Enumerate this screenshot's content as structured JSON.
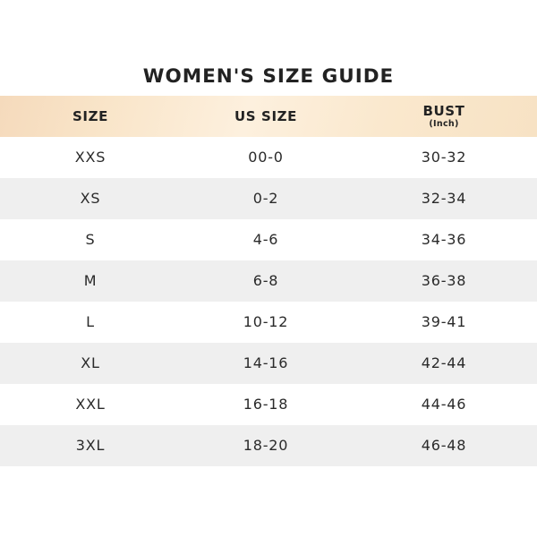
{
  "title": "WOMEN'S SIZE GUIDE",
  "colors": {
    "header_band_peach": "#f9e5c9",
    "header_band_light": "#fdf0de",
    "header_band_dark": "#f5dabc",
    "alt_row_gray": "#efefef",
    "row_white": "#ffffff",
    "text_dark": "#222222",
    "text_row": "#2a2a2a"
  },
  "table": {
    "columns": [
      {
        "label": "SIZE",
        "sublabel": ""
      },
      {
        "label": "US SIZE",
        "sublabel": ""
      },
      {
        "label": "BUST",
        "sublabel": "(Inch)"
      }
    ],
    "rows": [
      {
        "size": "XXS",
        "us_size": "00-0",
        "bust": "30-32"
      },
      {
        "size": "XS",
        "us_size": "0-2",
        "bust": "32-34"
      },
      {
        "size": "S",
        "us_size": "4-6",
        "bust": "34-36"
      },
      {
        "size": "M",
        "us_size": "6-8",
        "bust": "36-38"
      },
      {
        "size": "L",
        "us_size": "10-12",
        "bust": "39-41"
      },
      {
        "size": "XL",
        "us_size": "14-16",
        "bust": "42-44"
      },
      {
        "size": "XXL",
        "us_size": "16-18",
        "bust": "44-46"
      },
      {
        "size": "3XL",
        "us_size": "18-20",
        "bust": "46-48"
      }
    ]
  },
  "chart_data": {
    "type": "table",
    "title": "WOMEN'S SIZE GUIDE",
    "columns": [
      "SIZE",
      "US SIZE",
      "BUST (Inch)"
    ],
    "rows": [
      [
        "XXS",
        "00-0",
        "30-32"
      ],
      [
        "XS",
        "0-2",
        "32-34"
      ],
      [
        "S",
        "4-6",
        "34-36"
      ],
      [
        "M",
        "6-8",
        "36-38"
      ],
      [
        "L",
        "10-12",
        "39-41"
      ],
      [
        "XL",
        "14-16",
        "42-44"
      ],
      [
        "XXL",
        "16-18",
        "44-46"
      ],
      [
        "3XL",
        "18-20",
        "46-48"
      ]
    ],
    "layout_hints": {
      "alternating_row_shading": true,
      "header_background": "peach gradient band",
      "borders": "none"
    }
  }
}
